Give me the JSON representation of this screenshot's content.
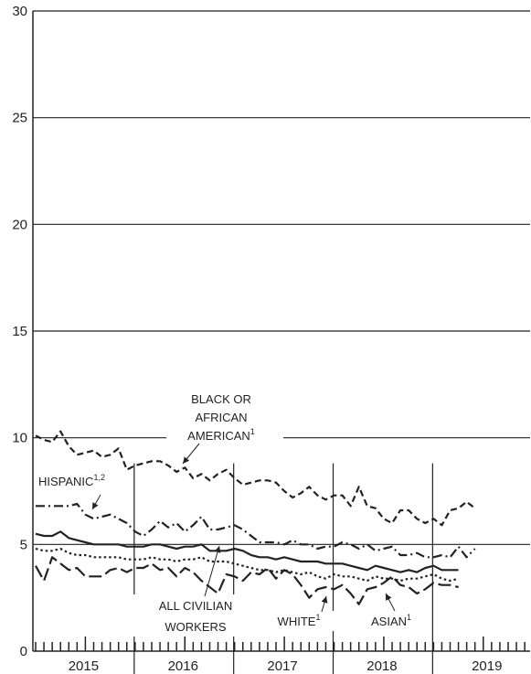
{
  "chart_data": {
    "type": "line",
    "ylim": [
      0,
      30
    ],
    "yticks": [
      0,
      5,
      10,
      15,
      20,
      25,
      30
    ],
    "grid": true,
    "xlim": [
      0,
      55
    ],
    "year_labels": [
      {
        "label": "2015",
        "start": 0,
        "end": 12
      },
      {
        "label": "2016",
        "start": 12,
        "end": 24
      },
      {
        "label": "2017",
        "start": 24,
        "end": 36
      },
      {
        "label": "2018",
        "start": 36,
        "end": 48
      },
      {
        "label": "2019",
        "start": 48,
        "end": 60
      }
    ],
    "series": [
      {
        "name": "BLACK OR AFRICAN AMERICAN",
        "label_lines": [
          "BLACK OR",
          "AFRICAN",
          "AMERICAN"
        ],
        "footnote": "1",
        "dash": "7 4",
        "values": [
          10.1,
          9.9,
          9.8,
          10.3,
          9.6,
          9.2,
          9.3,
          9.4,
          9.1,
          9.2,
          9.5,
          8.5,
          8.7,
          8.8,
          8.9,
          8.9,
          8.7,
          8.4,
          8.6,
          8.1,
          8.3,
          8.0,
          8.3,
          8.5,
          8.1,
          7.8,
          7.9,
          8.0,
          8.0,
          7.9,
          7.5,
          7.2,
          7.4,
          7.7,
          7.3,
          7.1,
          7.3,
          7.3,
          6.8,
          7.7,
          6.8,
          6.7,
          6.2,
          6.0,
          6.6,
          6.6,
          6.2,
          6.0,
          6.2,
          5.9,
          6.6,
          6.7,
          7.0,
          6.7
        ]
      },
      {
        "name": "HISPANIC",
        "label_lines": [
          "HISPANIC"
        ],
        "footnote": "1,2",
        "dash": "10 4 2 4",
        "values": [
          6.8,
          6.8,
          6.8,
          6.8,
          6.8,
          6.9,
          6.4,
          6.2,
          6.3,
          6.4,
          6.2,
          6.0,
          5.6,
          5.4,
          5.7,
          6.1,
          5.8,
          6.0,
          5.6,
          5.9,
          6.3,
          5.7,
          5.7,
          5.8,
          5.9,
          5.7,
          5.4,
          5.1,
          5.1,
          5.1,
          5.0,
          5.2,
          5.0,
          5.0,
          4.8,
          4.9,
          4.9,
          5.1,
          5.0,
          4.8,
          5.0,
          4.7,
          4.8,
          4.9,
          4.5,
          4.5,
          4.6,
          4.4,
          4.4,
          4.5,
          4.4,
          4.9,
          4.4,
          4.8
        ]
      },
      {
        "name": "ALL CIVILIAN WORKERS",
        "label_lines": [
          "ALL CIVILIAN",
          "WORKERS"
        ],
        "footnote": "",
        "dash": "",
        "values": [
          5.5,
          5.4,
          5.4,
          5.6,
          5.3,
          5.2,
          5.1,
          5.0,
          5.0,
          5.0,
          5.0,
          4.9,
          4.9,
          4.9,
          5.0,
          5.0,
          4.9,
          4.8,
          4.9,
          4.9,
          5.0,
          4.7,
          4.7,
          4.7,
          4.8,
          4.7,
          4.5,
          4.4,
          4.4,
          4.3,
          4.4,
          4.3,
          4.2,
          4.2,
          4.2,
          4.1,
          4.1,
          4.1,
          4.0,
          3.9,
          3.8,
          4.0,
          3.9,
          3.8,
          3.7,
          3.8,
          3.7,
          3.9,
          4.0,
          3.8,
          3.8,
          3.8
        ]
      },
      {
        "name": "WHITE",
        "label_lines": [
          "WHITE"
        ],
        "footnote": "1",
        "dash": "2.5 3",
        "values": [
          4.8,
          4.7,
          4.7,
          4.8,
          4.6,
          4.5,
          4.5,
          4.4,
          4.4,
          4.4,
          4.4,
          4.3,
          4.3,
          4.3,
          4.4,
          4.3,
          4.3,
          4.2,
          4.3,
          4.3,
          4.4,
          4.2,
          4.2,
          4.2,
          4.1,
          4.0,
          3.9,
          3.8,
          3.8,
          3.7,
          3.8,
          3.7,
          3.6,
          3.7,
          3.5,
          3.4,
          3.6,
          3.5,
          3.5,
          3.4,
          3.3,
          3.5,
          3.4,
          3.4,
          3.3,
          3.4,
          3.4,
          3.5,
          3.6,
          3.4,
          3.3,
          3.4
        ]
      },
      {
        "name": "ASIAN",
        "label_lines": [
          "ASIAN"
        ],
        "footnote": "1",
        "dash": "14 5",
        "values": [
          4.0,
          3.3,
          4.4,
          4.1,
          3.8,
          3.9,
          3.5,
          3.5,
          3.5,
          3.8,
          3.9,
          3.7,
          3.9,
          3.9,
          4.1,
          3.8,
          3.9,
          3.5,
          3.9,
          3.7,
          3.3,
          3.0,
          2.7,
          3.6,
          3.5,
          3.3,
          3.7,
          3.6,
          3.9,
          3.4,
          3.8,
          3.6,
          3.1,
          2.5,
          2.9,
          3.0,
          2.9,
          3.1,
          2.7,
          2.2,
          2.9,
          3.0,
          3.2,
          3.5,
          3.1,
          3.0,
          2.7,
          2.9,
          3.2,
          3.1,
          3.1,
          3.0
        ]
      }
    ]
  }
}
